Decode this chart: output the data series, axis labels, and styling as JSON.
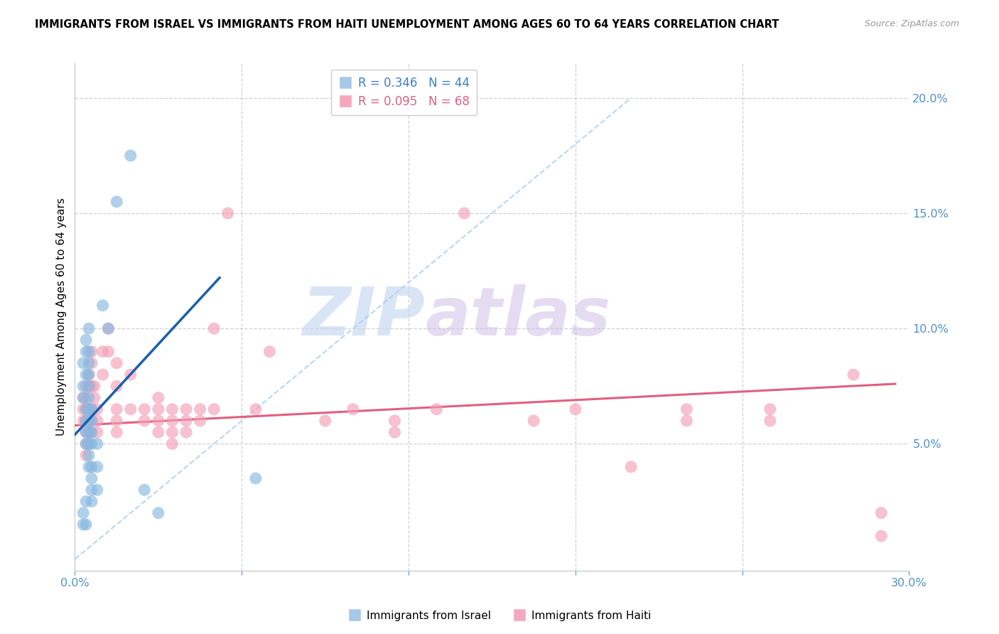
{
  "title": "IMMIGRANTS FROM ISRAEL VS IMMIGRANTS FROM HAITI UNEMPLOYMENT AMONG AGES 60 TO 64 YEARS CORRELATION CHART",
  "source": "Source: ZipAtlas.com",
  "ylabel": "Unemployment Among Ages 60 to 64 years",
  "right_yticks": [
    0.0,
    0.05,
    0.1,
    0.15,
    0.2
  ],
  "right_yticklabels": [
    "",
    "5.0%",
    "10.0%",
    "15.0%",
    "20.0%"
  ],
  "xlim": [
    0.0,
    0.3
  ],
  "ylim": [
    -0.005,
    0.215
  ],
  "israel_color": "#88b8e0",
  "haiti_color": "#f4a0b8",
  "israel_line_color": "#1a5fab",
  "haiti_line_color": "#e06080",
  "diag_color": "#aaccee",
  "watermark_zip": "ZIP",
  "watermark_atlas": "atlas",
  "background_color": "#ffffff",
  "grid_color": "#d0d0d0",
  "axis_label_color": "#5090c8",
  "israel_scatter": [
    [
      0.003,
      0.085
    ],
    [
      0.003,
      0.075
    ],
    [
      0.003,
      0.07
    ],
    [
      0.004,
      0.095
    ],
    [
      0.004,
      0.09
    ],
    [
      0.004,
      0.08
    ],
    [
      0.004,
      0.065
    ],
    [
      0.004,
      0.06
    ],
    [
      0.004,
      0.055
    ],
    [
      0.004,
      0.05
    ],
    [
      0.005,
      0.1
    ],
    [
      0.005,
      0.09
    ],
    [
      0.005,
      0.085
    ],
    [
      0.005,
      0.08
    ],
    [
      0.005,
      0.075
    ],
    [
      0.005,
      0.07
    ],
    [
      0.005,
      0.065
    ],
    [
      0.005,
      0.06
    ],
    [
      0.005,
      0.055
    ],
    [
      0.005,
      0.05
    ],
    [
      0.005,
      0.045
    ],
    [
      0.005,
      0.04
    ],
    [
      0.006,
      0.065
    ],
    [
      0.006,
      0.06
    ],
    [
      0.006,
      0.055
    ],
    [
      0.006,
      0.05
    ],
    [
      0.006,
      0.04
    ],
    [
      0.006,
      0.035
    ],
    [
      0.006,
      0.03
    ],
    [
      0.006,
      0.025
    ],
    [
      0.008,
      0.05
    ],
    [
      0.008,
      0.04
    ],
    [
      0.008,
      0.03
    ],
    [
      0.01,
      0.11
    ],
    [
      0.012,
      0.1
    ],
    [
      0.015,
      0.155
    ],
    [
      0.02,
      0.175
    ],
    [
      0.025,
      0.03
    ],
    [
      0.03,
      0.02
    ],
    [
      0.065,
      0.035
    ],
    [
      0.003,
      0.02
    ],
    [
      0.003,
      0.015
    ],
    [
      0.004,
      0.025
    ],
    [
      0.004,
      0.015
    ]
  ],
  "haiti_scatter": [
    [
      0.003,
      0.07
    ],
    [
      0.003,
      0.065
    ],
    [
      0.003,
      0.06
    ],
    [
      0.004,
      0.075
    ],
    [
      0.004,
      0.07
    ],
    [
      0.004,
      0.065
    ],
    [
      0.004,
      0.06
    ],
    [
      0.004,
      0.055
    ],
    [
      0.004,
      0.05
    ],
    [
      0.004,
      0.045
    ],
    [
      0.005,
      0.08
    ],
    [
      0.005,
      0.075
    ],
    [
      0.005,
      0.065
    ],
    [
      0.005,
      0.06
    ],
    [
      0.005,
      0.055
    ],
    [
      0.005,
      0.05
    ],
    [
      0.006,
      0.09
    ],
    [
      0.006,
      0.085
    ],
    [
      0.006,
      0.075
    ],
    [
      0.006,
      0.065
    ],
    [
      0.006,
      0.06
    ],
    [
      0.006,
      0.055
    ],
    [
      0.007,
      0.075
    ],
    [
      0.007,
      0.07
    ],
    [
      0.008,
      0.065
    ],
    [
      0.008,
      0.06
    ],
    [
      0.008,
      0.055
    ],
    [
      0.01,
      0.09
    ],
    [
      0.01,
      0.08
    ],
    [
      0.012,
      0.1
    ],
    [
      0.012,
      0.09
    ],
    [
      0.015,
      0.085
    ],
    [
      0.015,
      0.075
    ],
    [
      0.015,
      0.065
    ],
    [
      0.015,
      0.06
    ],
    [
      0.015,
      0.055
    ],
    [
      0.02,
      0.08
    ],
    [
      0.02,
      0.065
    ],
    [
      0.025,
      0.065
    ],
    [
      0.025,
      0.06
    ],
    [
      0.03,
      0.07
    ],
    [
      0.03,
      0.065
    ],
    [
      0.03,
      0.06
    ],
    [
      0.03,
      0.055
    ],
    [
      0.035,
      0.065
    ],
    [
      0.035,
      0.06
    ],
    [
      0.035,
      0.055
    ],
    [
      0.035,
      0.05
    ],
    [
      0.04,
      0.065
    ],
    [
      0.04,
      0.06
    ],
    [
      0.04,
      0.055
    ],
    [
      0.045,
      0.065
    ],
    [
      0.045,
      0.06
    ],
    [
      0.05,
      0.1
    ],
    [
      0.05,
      0.065
    ],
    [
      0.055,
      0.15
    ],
    [
      0.065,
      0.065
    ],
    [
      0.07,
      0.09
    ],
    [
      0.09,
      0.06
    ],
    [
      0.1,
      0.065
    ],
    [
      0.115,
      0.06
    ],
    [
      0.115,
      0.055
    ],
    [
      0.13,
      0.065
    ],
    [
      0.14,
      0.15
    ],
    [
      0.165,
      0.06
    ],
    [
      0.18,
      0.065
    ],
    [
      0.2,
      0.04
    ],
    [
      0.22,
      0.065
    ],
    [
      0.22,
      0.06
    ],
    [
      0.25,
      0.065
    ],
    [
      0.25,
      0.06
    ],
    [
      0.28,
      0.08
    ],
    [
      0.29,
      0.02
    ],
    [
      0.29,
      0.01
    ]
  ],
  "israel_line_x": [
    0.0,
    0.052
  ],
  "israel_line_y": [
    0.054,
    0.122
  ],
  "haiti_line_x": [
    0.0,
    0.295
  ],
  "haiti_line_y": [
    0.058,
    0.076
  ]
}
